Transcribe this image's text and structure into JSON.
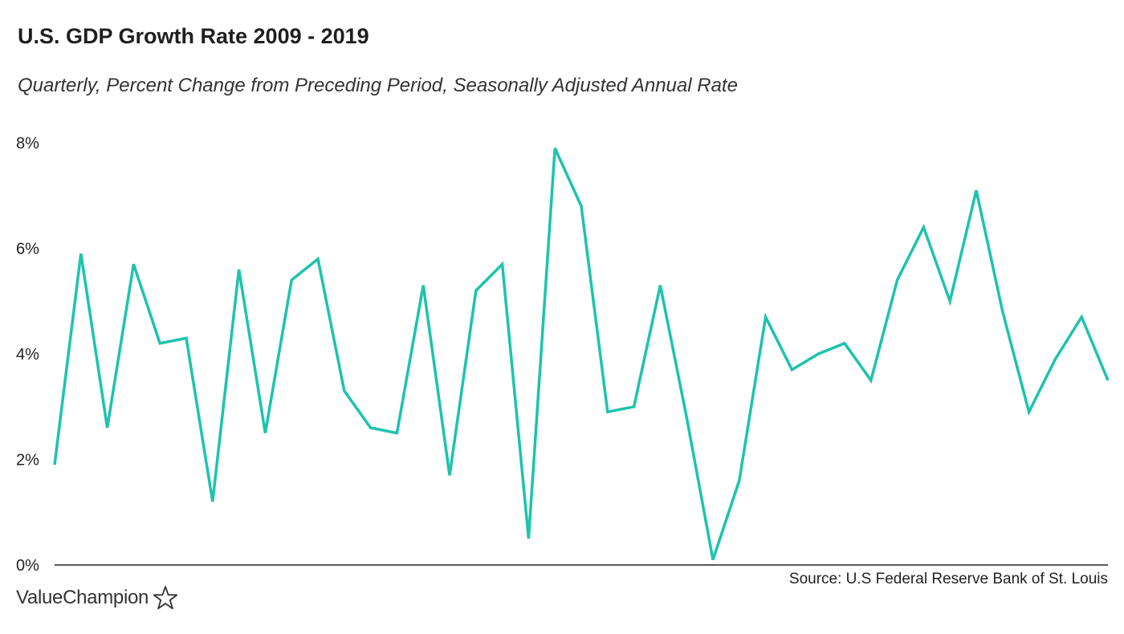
{
  "chart_data": {
    "type": "line",
    "title": "U.S. GDP Growth Rate 2009 - 2019",
    "subtitle": "Quarterly, Percent Change from Preceding Period, Seasonally Adjusted Annual Rate",
    "xlabel": "",
    "ylabel": "",
    "ylim": [
      0,
      8
    ],
    "yticks": [
      {
        "value": 0,
        "label": "0%"
      },
      {
        "value": 2,
        "label": "2%"
      },
      {
        "value": 4,
        "label": "4%"
      },
      {
        "value": 6,
        "label": "6%"
      },
      {
        "value": 8,
        "label": "8%"
      }
    ],
    "grid": false,
    "legend": "none",
    "series": [
      {
        "color": "#1dc3ae",
        "values": [
          1.9,
          5.9,
          2.6,
          5.7,
          4.2,
          4.3,
          1.2,
          5.6,
          2.5,
          5.4,
          5.8,
          3.3,
          2.6,
          2.5,
          5.3,
          1.7,
          5.2,
          5.7,
          0.5,
          7.9,
          6.8,
          2.9,
          3.0,
          5.3,
          2.8,
          0.1,
          1.6,
          4.7,
          3.7,
          4.0,
          4.2,
          3.5,
          5.4,
          6.4,
          5.0,
          7.1,
          4.8,
          2.9,
          3.9,
          4.7,
          3.5
        ]
      }
    ],
    "source": "Source: U.S Federal Reserve Bank of St. Louis"
  },
  "branding": {
    "logo_text": "ValueChampion",
    "logo_icon": "star-outline-icon"
  },
  "colors": {
    "line": "#1dc3ae",
    "axis": "#222222"
  }
}
